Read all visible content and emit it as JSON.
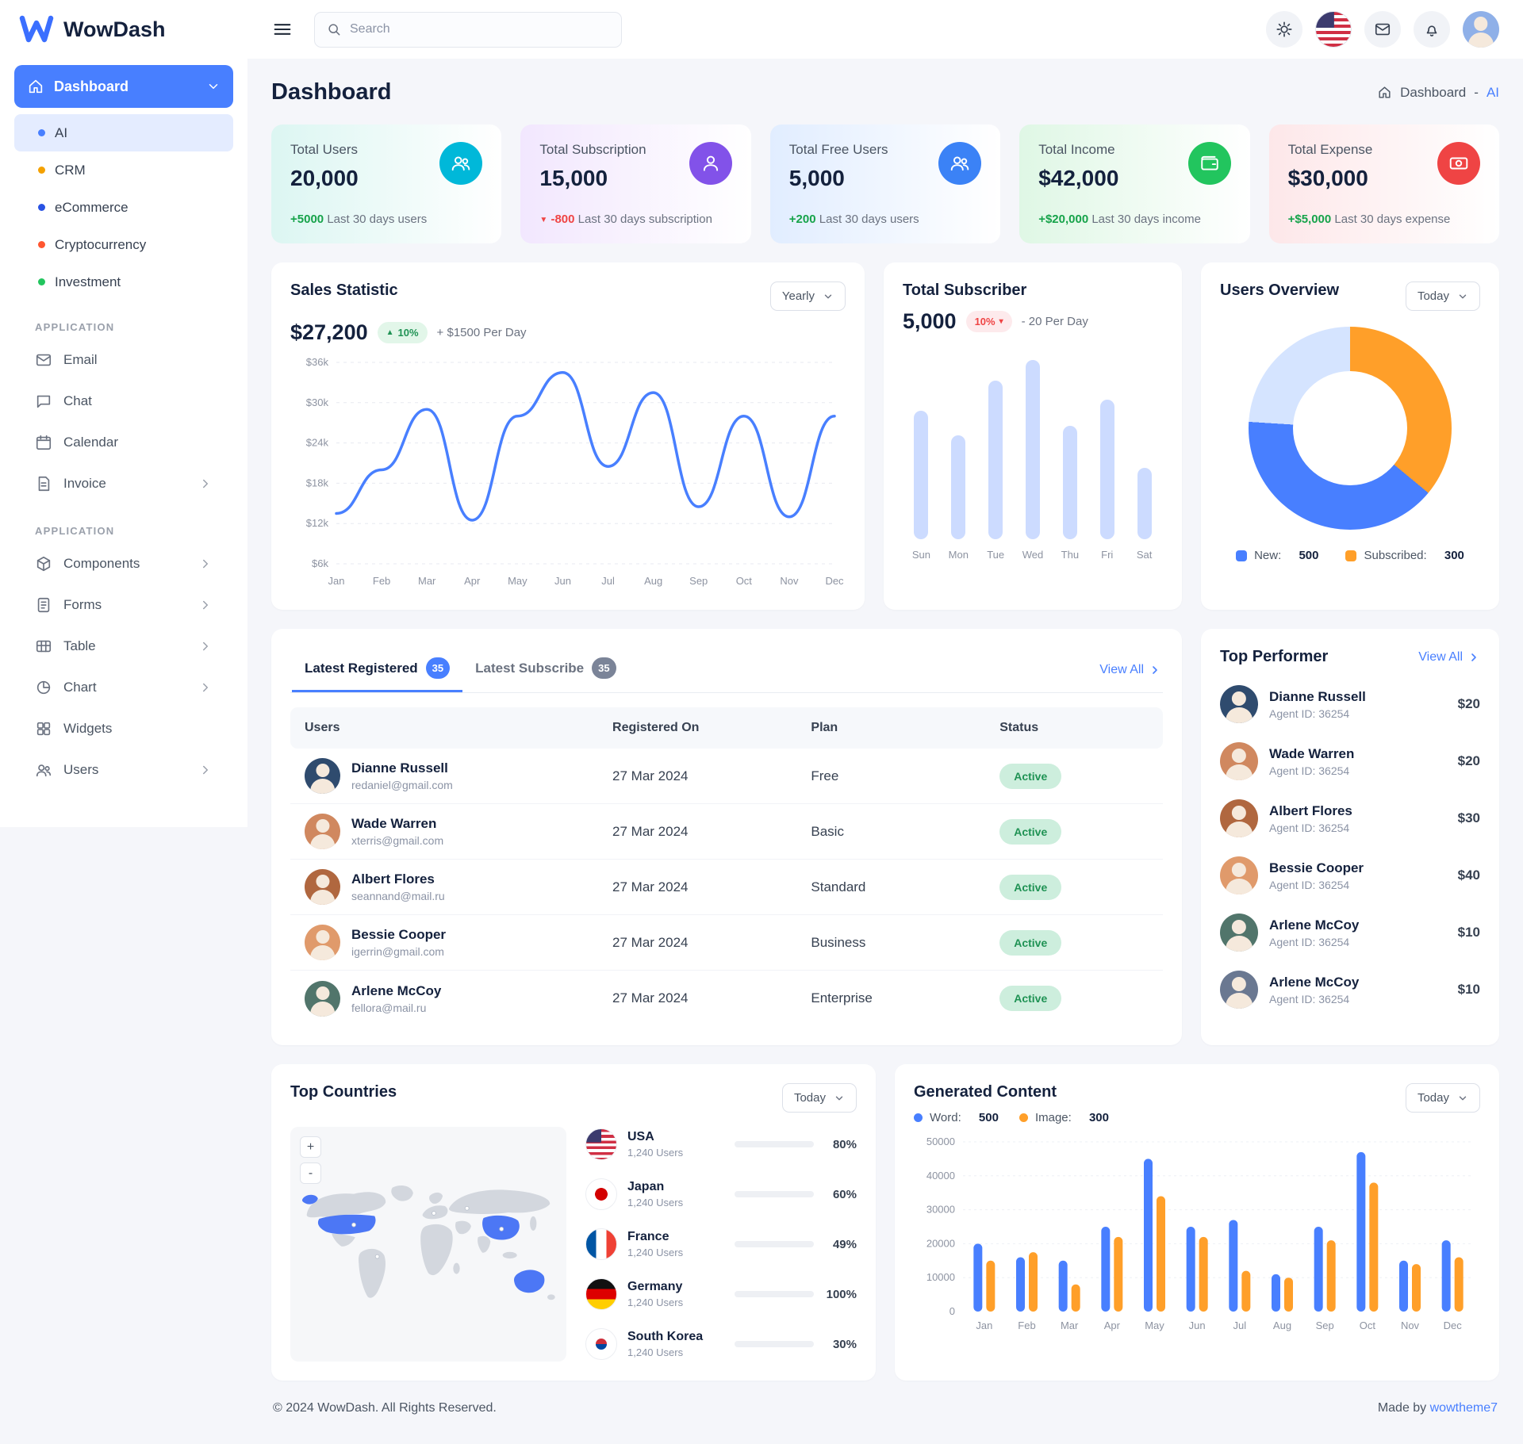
{
  "colors": {
    "primary": "#487fff",
    "success": "#22c55e",
    "danger": "#ef4444",
    "warning": "#ff9f29",
    "cyan": "#00b8d9",
    "purple": "#8252e9",
    "blue": "#3b82f6",
    "pale_blue": "#d5e4ff",
    "page_bg": "#f5f6fa"
  },
  "brand": {
    "name": "WowDash"
  },
  "header": {
    "search_placeholder": "Search"
  },
  "breadcrumb": {
    "root": "Dashboard",
    "separator": "-",
    "current": "AI"
  },
  "sidebar": {
    "dashboard_label": "Dashboard",
    "dashboard_items": [
      {
        "label": "AI"
      },
      {
        "label": "CRM"
      },
      {
        "label": "eCommerce"
      },
      {
        "label": "Cryptocurrency"
      },
      {
        "label": "Investment"
      }
    ],
    "section1_title": "Application",
    "section1_items": [
      {
        "label": "Email"
      },
      {
        "label": "Chat"
      },
      {
        "label": "Calendar"
      },
      {
        "label": "Invoice"
      }
    ],
    "section2_title": "Application",
    "section2_items": [
      {
        "label": "Components"
      },
      {
        "label": "Forms"
      },
      {
        "label": "Table"
      },
      {
        "label": "Chart"
      },
      {
        "label": "Widgets"
      },
      {
        "label": "Users"
      }
    ]
  },
  "page": {
    "title": "Dashboard"
  },
  "stats": [
    {
      "title": "Total Users",
      "value": "20,000",
      "delta": "+5000",
      "note": "Last 30 days users"
    },
    {
      "title": "Total Subscription",
      "value": "15,000",
      "delta": "-800",
      "note": "Last 30 days subscription"
    },
    {
      "title": "Total Free Users",
      "value": "5,000",
      "delta": "+200",
      "note": "Last 30 days users"
    },
    {
      "title": "Total Income",
      "value": "$42,000",
      "delta": "+$20,000",
      "note": "Last 30 days income"
    },
    {
      "title": "Total Expense",
      "value": "$30,000",
      "delta": "+$5,000",
      "note": "Last 30 days expense"
    }
  ],
  "sales": {
    "title": "Sales Statistic",
    "value": "$27,200",
    "badge": "10%",
    "per_day": "+ $1500 Per Day",
    "select": "Yearly"
  },
  "subscriber": {
    "title": "Total Subscriber",
    "value": "5,000",
    "badge": "10%",
    "per_day": "- 20 Per Day"
  },
  "users_overview": {
    "title": "Users Overview",
    "select": "Today",
    "legend": [
      {
        "label": "New:",
        "value": "500"
      },
      {
        "label": "Subscribed:",
        "value": "300"
      }
    ]
  },
  "latest": {
    "tab1": "Latest Registered",
    "tab1_badge": "35",
    "tab2": "Latest Subscribe",
    "tab2_badge": "35",
    "view_all": "View All",
    "columns": [
      "Users",
      "Registered On",
      "Plan",
      "Status"
    ],
    "rows": [
      {
        "name": "Dianne Russell",
        "email": "redaniel@gmail.com",
        "date": "27 Mar 2024",
        "plan": "Free",
        "status": "Active"
      },
      {
        "name": "Wade Warren",
        "email": "xterris@gmail.com",
        "date": "27 Mar 2024",
        "plan": "Basic",
        "status": "Active"
      },
      {
        "name": "Albert Flores",
        "email": "seannand@mail.ru",
        "date": "27 Mar 2024",
        "plan": "Standard",
        "status": "Active"
      },
      {
        "name": "Bessie Cooper",
        "email": "igerrin@gmail.com",
        "date": "27 Mar 2024",
        "plan": "Business",
        "status": "Active"
      },
      {
        "name": "Arlene McCoy",
        "email": "fellora@mail.ru",
        "date": "27 Mar 2024",
        "plan": "Enterprise",
        "status": "Active"
      }
    ]
  },
  "top_performer": {
    "title": "Top Performer",
    "view_all": "View All",
    "items": [
      {
        "name": "Dianne Russell",
        "agent": "Agent ID: 36254",
        "amount": "$20"
      },
      {
        "name": "Wade Warren",
        "agent": "Agent ID: 36254",
        "amount": "$20"
      },
      {
        "name": "Albert Flores",
        "agent": "Agent ID: 36254",
        "amount": "$30"
      },
      {
        "name": "Bessie Cooper",
        "agent": "Agent ID: 36254",
        "amount": "$40"
      },
      {
        "name": "Arlene McCoy",
        "agent": "Agent ID: 36254",
        "amount": "$10"
      },
      {
        "name": "Arlene McCoy",
        "agent": "Agent ID: 36254",
        "amount": "$10"
      }
    ]
  },
  "top_countries": {
    "title": "Top Countries",
    "select": "Today",
    "zoom_in_label": "+",
    "zoom_out_label": "-",
    "items": [
      {
        "country": "USA",
        "users": "1,240 Users",
        "percent": 80,
        "percent_label": "80%",
        "color": "#487fff"
      },
      {
        "country": "Japan",
        "users": "1,240 Users",
        "percent": 60,
        "percent_label": "60%",
        "color": "#ff9f29"
      },
      {
        "country": "France",
        "users": "1,240 Users",
        "percent": 49,
        "percent_label": "49%",
        "color": "#ffb020"
      },
      {
        "country": "Germany",
        "users": "1,240 Users",
        "percent": 100,
        "percent_label": "100%",
        "color": "#2dca73"
      },
      {
        "country": "South Korea",
        "users": "1,240 Users",
        "percent": 30,
        "percent_label": "30%",
        "color": "#487fff"
      }
    ]
  },
  "generated": {
    "title": "Generated Content",
    "select": "Today",
    "legend": [
      {
        "label": "Word:",
        "value": "500"
      },
      {
        "label": "Image:",
        "value": "300"
      }
    ]
  },
  "footer": {
    "copyright": "© 2024 WowDash. All Rights Reserved.",
    "made_by": "Made by ",
    "made_by_link": "wowtheme7"
  },
  "chart_data": [
    {
      "id": "sales",
      "type": "line",
      "title": "Sales Statistic",
      "x": [
        "Jan",
        "Feb",
        "Mar",
        "Apr",
        "May",
        "Jun",
        "Jul",
        "Aug",
        "Sep",
        "Oct",
        "Nov",
        "Dec"
      ],
      "series": [
        {
          "name": "Sales",
          "color": "#487fff",
          "values": [
            13500,
            20000,
            29000,
            12500,
            28000,
            34500,
            20500,
            31500,
            14500,
            28000,
            13000,
            28000
          ]
        }
      ],
      "ylim": [
        6000,
        36000
      ],
      "yticks": [
        "$6k",
        "$12k",
        "$18k",
        "$24k",
        "$30k",
        "$36k"
      ],
      "grid": "dashed-horizontal",
      "legend_position": "none"
    },
    {
      "id": "subscriber",
      "type": "bar",
      "title": "Total Subscriber",
      "categories": [
        "Sun",
        "Mon",
        "Tue",
        "Wed",
        "Thu",
        "Fri",
        "Sat"
      ],
      "values": [
        68,
        55,
        84,
        95,
        60,
        74,
        38
      ],
      "ylim": [
        0,
        100
      ],
      "color": "#ccdbff",
      "grid": "off"
    },
    {
      "id": "users_overview",
      "type": "pie",
      "title": "Users Overview",
      "slices": [
        {
          "label": "Subscribed",
          "value": 300,
          "pct": 36,
          "color": "#ff9f29"
        },
        {
          "label": "New",
          "value": 500,
          "pct": 40,
          "color": "#487fff"
        },
        {
          "label": "",
          "pct": 24,
          "color": "#d5e4ff"
        }
      ]
    },
    {
      "id": "top_countries",
      "type": "bar",
      "title": "Top Countries",
      "unit": "%",
      "categories": [
        "USA",
        "Japan",
        "France",
        "Germany",
        "South Korea"
      ],
      "values": [
        80,
        60,
        49,
        100,
        30
      ]
    },
    {
      "id": "generated",
      "type": "bar",
      "title": "Generated Content",
      "categories": [
        "Jan",
        "Feb",
        "Mar",
        "Apr",
        "May",
        "Jun",
        "Jul",
        "Aug",
        "Sep",
        "Oct",
        "Nov",
        "Dec"
      ],
      "series": [
        {
          "name": "Word",
          "color": "#487fff",
          "values": [
            20000,
            16000,
            15000,
            25000,
            45000,
            25000,
            27000,
            11000,
            25000,
            47000,
            15000,
            21000
          ]
        },
        {
          "name": "Image",
          "color": "#ff9f29",
          "values": [
            15000,
            17500,
            8000,
            22000,
            34000,
            22000,
            12000,
            10000,
            21000,
            38000,
            14000,
            16000
          ]
        }
      ],
      "ylim": [
        0,
        50000
      ],
      "yticks": [
        "0",
        "10000",
        "20000",
        "30000",
        "40000",
        "50000"
      ],
      "legend_position": "top"
    }
  ]
}
